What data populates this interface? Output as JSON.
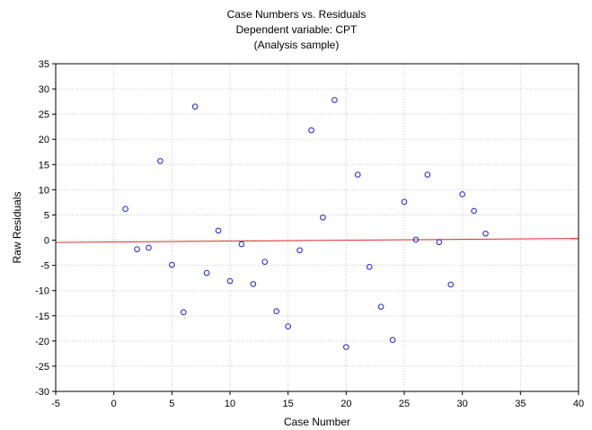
{
  "chart_data": {
    "type": "scatter",
    "title": [
      "Case Numbers vs. Residuals",
      "Dependent variable: CPT",
      "(Analysis sample)"
    ],
    "xlabel": "Case Number",
    "ylabel": "Raw Residuals",
    "xlim": [
      -5,
      40
    ],
    "ylim": [
      -30,
      35
    ],
    "xticks": [
      -5,
      0,
      5,
      10,
      15,
      20,
      25,
      30,
      35,
      40
    ],
    "yticks": [
      -30,
      -25,
      -20,
      -15,
      -10,
      -5,
      0,
      5,
      10,
      15,
      20,
      25,
      30,
      35
    ],
    "grid": true,
    "point_color": "#1f1fe0",
    "line_color": "#e03030",
    "series": [
      {
        "x": [
          1,
          2,
          3,
          4,
          5,
          6,
          7,
          8,
          9,
          10,
          11,
          12,
          13,
          14,
          15,
          16,
          17,
          18,
          19,
          20,
          21,
          22,
          23,
          24,
          25,
          26,
          27,
          28,
          29,
          30,
          31,
          32
        ],
        "y": [
          6.2,
          -1.8,
          -1.5,
          15.7,
          -4.9,
          -14.3,
          26.5,
          -6.5,
          1.9,
          -8.1,
          -0.8,
          -8.7,
          -4.3,
          -14.1,
          -17.1,
          -2.0,
          21.8,
          4.5,
          27.8,
          -21.2,
          13.0,
          -5.3,
          -13.2,
          -19.8,
          7.6,
          0.1,
          13.0,
          -0.4,
          -8.8,
          9.1,
          5.8,
          1.3
        ]
      }
    ],
    "fit_line": {
      "x": [
        -5,
        40
      ],
      "y": [
        -0.45,
        0.35
      ]
    }
  }
}
